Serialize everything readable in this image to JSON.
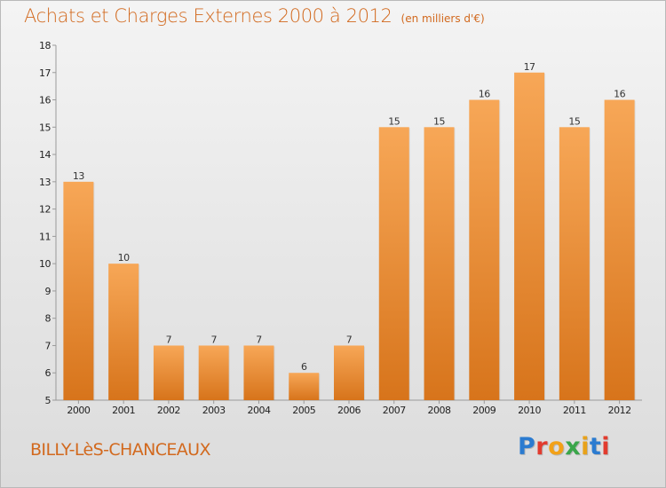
{
  "chart_data": {
    "type": "bar",
    "title": "Achats et Charges Externes 2000 à 2012",
    "unit_label": "(en milliers d'€)",
    "categories": [
      "2000",
      "2001",
      "2002",
      "2003",
      "2004",
      "2005",
      "2006",
      "2007",
      "2008",
      "2009",
      "2010",
      "2011",
      "2012"
    ],
    "values": [
      13,
      10,
      7,
      7,
      7,
      6,
      7,
      15,
      15,
      16,
      17,
      15,
      16
    ],
    "ylim": [
      5,
      18
    ],
    "yticks": [
      5,
      6,
      7,
      8,
      9,
      10,
      11,
      12,
      13,
      14,
      15,
      16,
      17,
      18
    ],
    "grid": false,
    "bar_color_top": "#f7a757",
    "bar_color_bottom": "#d7741b"
  },
  "location": "BILLY-LèS-CHANCEAUX",
  "logo": {
    "text": "Proxiti",
    "colors": [
      "#2b7bd0",
      "#e23b2e",
      "#f2a118",
      "#3aa64a",
      "#e8a21a",
      "#2b7bd0",
      "#e23b2e"
    ]
  }
}
